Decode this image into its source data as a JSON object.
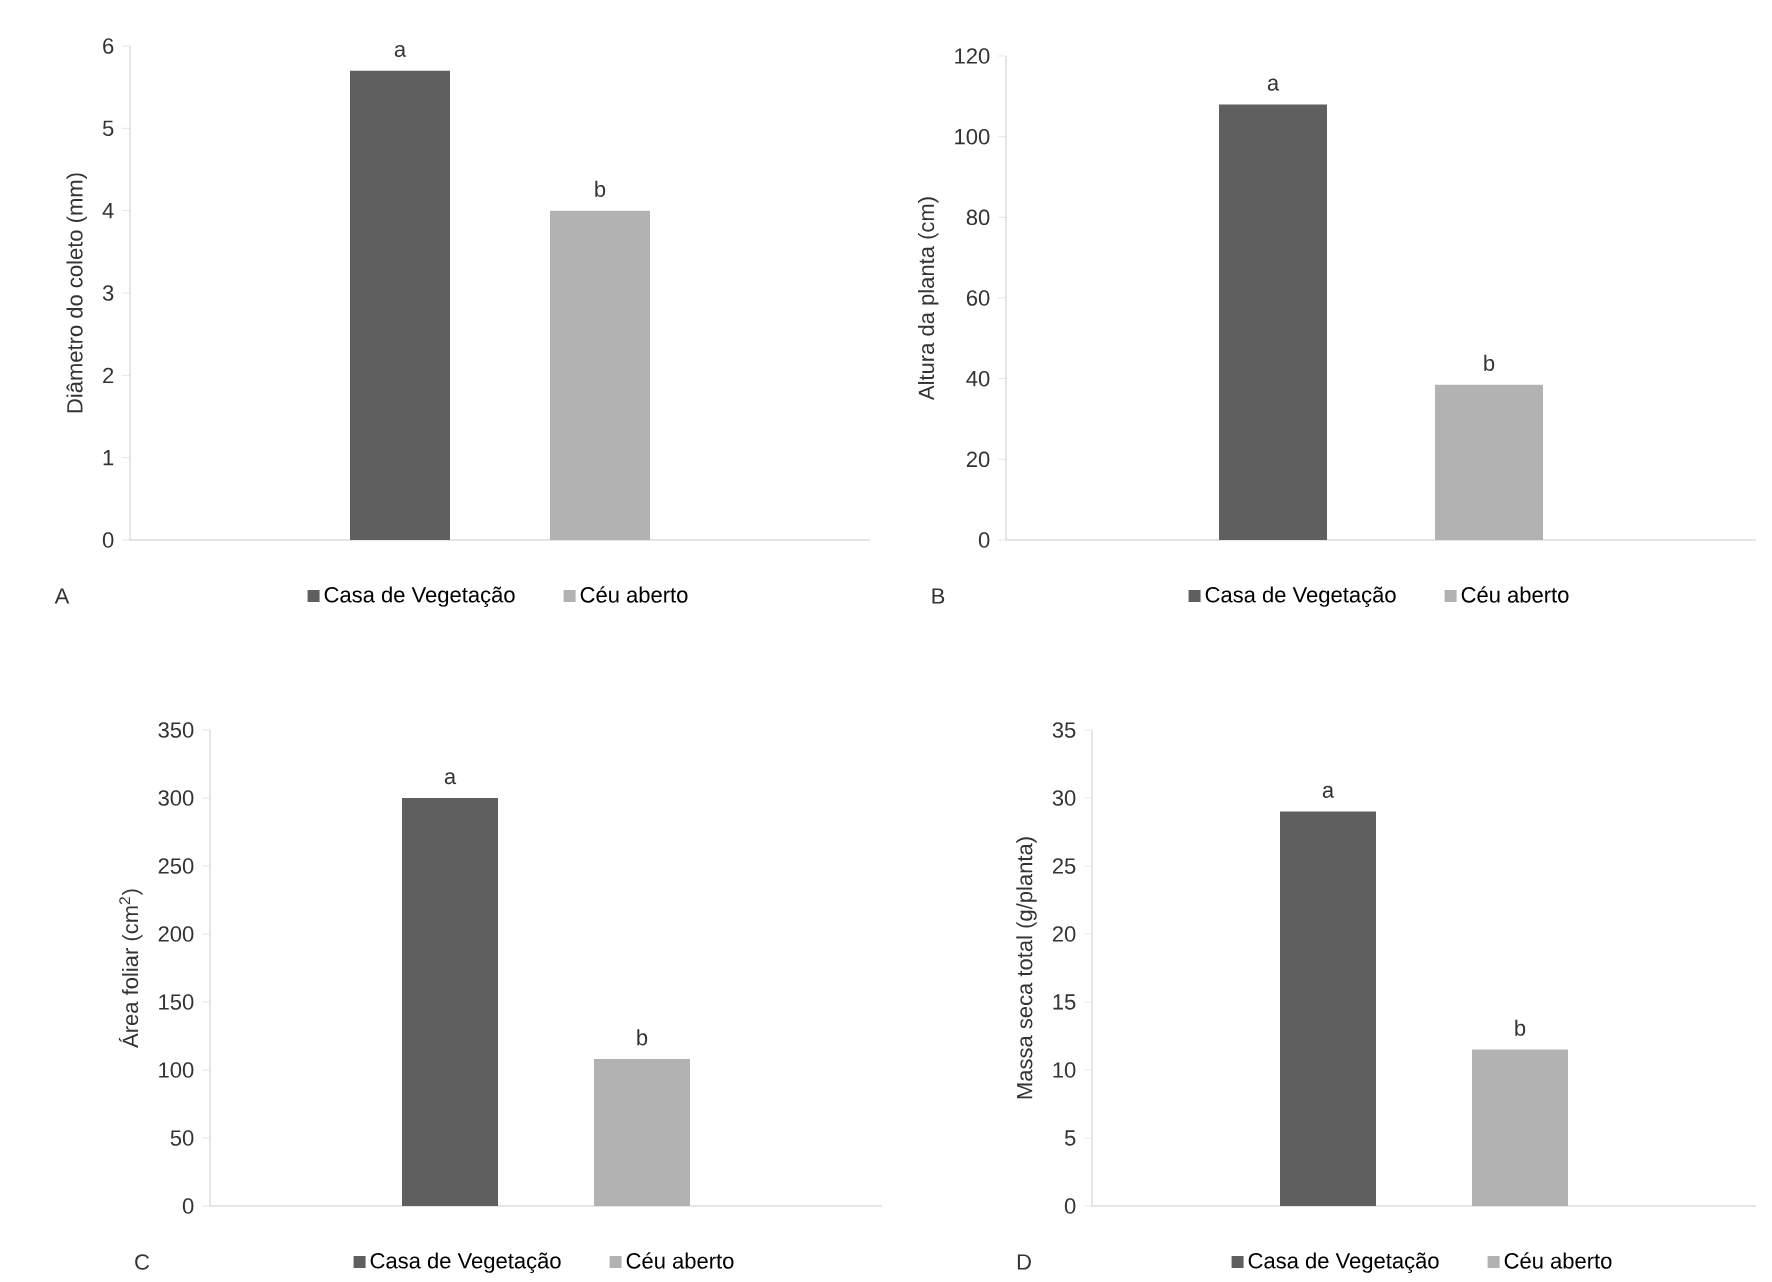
{
  "chart_data": [
    {
      "type": "bar",
      "ylabel": "Diâmetro do coleto (mm)",
      "categories": [
        null
      ],
      "series": [
        {
          "name": "Casa de Vegetação",
          "color": "#5f5f5f",
          "values": [
            5.7
          ]
        },
        {
          "name": "Céu aberto",
          "color": "#b2b2b2",
          "values": [
            4.0
          ]
        }
      ],
      "ylim": [
        0,
        6
      ],
      "yticks": [
        0,
        1,
        2,
        3,
        4,
        5,
        6
      ],
      "legend": "bottom",
      "annotations": [
        "A",
        {
          "text": "a",
          "y": 5.7
        },
        {
          "text": "b",
          "y": 4.0
        }
      ]
    },
    {
      "type": "bar",
      "ylabel": "Altura da planta (cm)",
      "categories": [
        null
      ],
      "series": [
        {
          "name": "Casa de Vegetação",
          "color": "#5f5f5f",
          "values": [
            108
          ]
        },
        {
          "name": "Céu aberto",
          "color": "#b2b2b2",
          "values": [
            38.5
          ]
        }
      ],
      "ylim": [
        0,
        120
      ],
      "yticks": [
        0,
        20,
        40,
        60,
        80,
        100,
        120
      ],
      "legend": "bottom",
      "annotations": [
        "B",
        {
          "text": "a",
          "y": 108
        },
        {
          "text": "b",
          "y": 38.5
        }
      ]
    },
    {
      "type": "bar",
      "ylabel": "Área foliar (cm$^{2}$)",
      "categories": [
        null
      ],
      "series": [
        {
          "name": "Casa de Vegetação",
          "color": "#5f5f5f",
          "values": [
            300
          ]
        },
        {
          "name": "Céu aberto",
          "color": "#b2b2b2",
          "values": [
            108
          ]
        }
      ],
      "ylim": [
        0,
        350
      ],
      "yticks": [
        0,
        50,
        100,
        150,
        200,
        250,
        300,
        350
      ],
      "legend": "bottom",
      "annotations": [
        "C",
        {
          "text": "a",
          "y": 300
        },
        {
          "text": "b",
          "y": 108
        }
      ]
    },
    {
      "type": "bar",
      "ylabel": "Massa seca total (g/planta)",
      "categories": [
        null
      ],
      "series": [
        {
          "name": "Casa de Vegetação",
          "color": "#5f5f5f",
          "values": [
            29
          ]
        },
        {
          "name": "Céu aberto",
          "color": "#b2b2b2",
          "values": [
            11.5
          ]
        }
      ],
      "ylim": [
        0,
        35
      ],
      "yticks": [
        0,
        5,
        10,
        15,
        20,
        25,
        30,
        35
      ],
      "legend": "bottom",
      "annotations": [
        "D",
        {
          "text": "a",
          "y": 29
        },
        {
          "text": "b",
          "y": 11.5
        }
      ]
    }
  ]
}
